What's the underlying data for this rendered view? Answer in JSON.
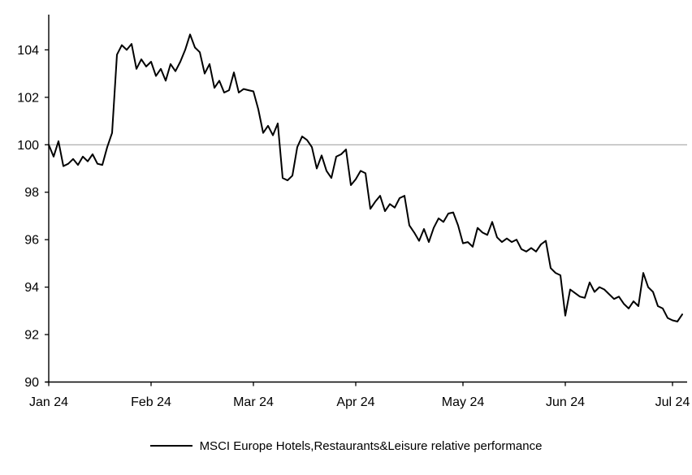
{
  "chart_data": {
    "type": "line",
    "title": "",
    "legend": {
      "label": "MSCI Europe Hotels,Restaurants&Leisure relative performance",
      "position": "bottom-center"
    },
    "y_axis": {
      "ticks": [
        90,
        92,
        94,
        96,
        98,
        100,
        102,
        104
      ],
      "range": [
        90,
        105.4
      ]
    },
    "x_axis": {
      "ticks": [
        {
          "label": "Jan 24",
          "index": 0
        },
        {
          "label": "Feb 24",
          "index": 21
        },
        {
          "label": "Mar 24",
          "index": 42
        },
        {
          "label": "Apr 24",
          "index": 63
        },
        {
          "label": "May 24",
          "index": 85
        },
        {
          "label": "Jun 24",
          "index": 106
        },
        {
          "label": "Jul 24",
          "index": 128
        }
      ]
    },
    "reference_line": {
      "value": 100,
      "color": "#a6a6a6"
    },
    "grid": false,
    "series": [
      {
        "name": "MSCI Europe Hotels,Restaurants&Leisure relative performance",
        "color": "#000000",
        "values": [
          100.0,
          99.5,
          100.15,
          99.1,
          99.2,
          99.4,
          99.15,
          99.5,
          99.3,
          99.6,
          99.2,
          99.15,
          99.9,
          100.5,
          103.8,
          104.2,
          104.0,
          104.25,
          103.2,
          103.6,
          103.3,
          103.5,
          102.9,
          103.2,
          102.7,
          103.4,
          103.1,
          103.5,
          104.0,
          104.65,
          104.1,
          103.9,
          103.0,
          103.4,
          102.4,
          102.7,
          102.2,
          102.3,
          103.05,
          102.2,
          102.35,
          102.3,
          102.25,
          101.5,
          100.5,
          100.8,
          100.4,
          100.9,
          98.6,
          98.5,
          98.7,
          99.9,
          100.35,
          100.2,
          99.9,
          99.0,
          99.55,
          98.9,
          98.6,
          99.5,
          99.6,
          99.8,
          98.3,
          98.55,
          98.9,
          98.8,
          97.3,
          97.6,
          97.85,
          97.2,
          97.5,
          97.35,
          97.75,
          97.85,
          96.6,
          96.3,
          95.95,
          96.45,
          95.9,
          96.5,
          96.9,
          96.75,
          97.1,
          97.15,
          96.6,
          95.85,
          95.9,
          95.7,
          96.5,
          96.3,
          96.2,
          96.75,
          96.1,
          95.9,
          96.05,
          95.9,
          96.0,
          95.6,
          95.5,
          95.65,
          95.5,
          95.8,
          95.95,
          94.8,
          94.6,
          94.5,
          92.8,
          93.9,
          93.75,
          93.6,
          93.55,
          94.2,
          93.8,
          94.0,
          93.9,
          93.7,
          93.5,
          93.6,
          93.3,
          93.1,
          93.4,
          93.2,
          94.6,
          94.0,
          93.8,
          93.2,
          93.1,
          92.7,
          92.6,
          92.55,
          92.85
        ]
      }
    ]
  },
  "colors": {
    "background": "#ffffff",
    "axis": "#000000",
    "text": "#000000"
  }
}
